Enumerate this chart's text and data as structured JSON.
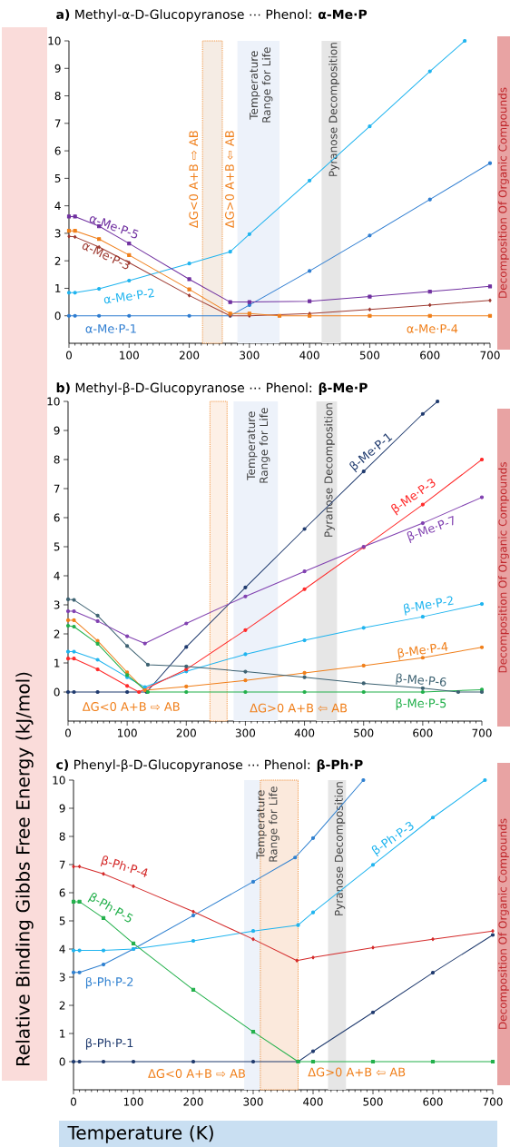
{
  "chart_data": [
    {
      "type": "line",
      "title": "**a)** Methyl-α-D-Glucopyranose ⋯ Phenol: **α-Me·P**",
      "xlim": [
        0,
        700
      ],
      "ylim": [
        -1,
        10
      ],
      "xticks": [
        0,
        100,
        200,
        300,
        400,
        500,
        600,
        700
      ],
      "yticks": [
        0,
        1,
        2,
        3,
        4,
        5,
        6,
        7,
        8,
        9,
        10
      ],
      "series": [
        {
          "name": "α-Me·P-1",
          "color": "#2e7dd1",
          "marker": "circle",
          "x": [
            0,
            10,
            50,
            100,
            200,
            268,
            300,
            400,
            500,
            600,
            700
          ],
          "values": [
            0,
            0,
            0,
            0,
            0,
            0,
            0.39,
            1.63,
            2.92,
            4.23,
            5.55
          ]
        },
        {
          "name": "α-Me·P-2",
          "color": "#1fb4ef",
          "marker": "circle",
          "x": [
            0,
            10,
            50,
            100,
            200,
            268,
            300,
            400,
            500,
            600,
            658
          ],
          "values": [
            0.84,
            0.84,
            0.98,
            1.28,
            1.9,
            2.33,
            2.97,
            4.92,
            6.89,
            8.89,
            10
          ]
        },
        {
          "name": "α-Me·P-3",
          "color": "#9e3b32",
          "marker": "diamond",
          "x": [
            0,
            10,
            50,
            100,
            200,
            268,
            300,
            400,
            500,
            600,
            700
          ],
          "values": [
            2.89,
            2.87,
            2.5,
            1.93,
            0.74,
            0,
            0,
            0.08,
            0.23,
            0.39,
            0.56
          ]
        },
        {
          "name": "α-Me·P-4",
          "color": "#f07f1a",
          "marker": "square",
          "x": [
            0,
            10,
            50,
            100,
            200,
            268,
            300,
            350,
            400,
            500,
            600,
            700
          ],
          "values": [
            3.09,
            3.09,
            2.79,
            2.21,
            0.96,
            0.08,
            0.08,
            0,
            0,
            0,
            0,
            0
          ]
        },
        {
          "name": "α-Me·P-5",
          "color": "#7030a0",
          "marker": "square",
          "x": [
            0,
            10,
            50,
            100,
            200,
            268,
            300,
            400,
            500,
            600,
            700
          ],
          "values": [
            3.61,
            3.61,
            3.26,
            2.63,
            1.33,
            0.5,
            0.5,
            0.53,
            0.7,
            0.88,
            1.07
          ]
        }
      ],
      "bands": [
        {
          "axis": "x",
          "from": 280,
          "to": 350,
          "label": "Temperature Range for Life",
          "color": "#edf2fa"
        },
        {
          "axis": "x",
          "from": 420,
          "to": 452,
          "label": "Pyranose Decomposition",
          "color": "#e6e6e6"
        },
        {
          "axis": "x",
          "from": 222,
          "to": 255,
          "color": "#f5ece4"
        }
      ],
      "annotations": [
        "ΔG<0 A+B ⇨ AB",
        "ΔG>0 A+B ⇦ AB",
        "Decomposition Of Organic Compounds"
      ]
    },
    {
      "type": "line",
      "title": "**b)** Methyl-β-D-Glucopyranose ⋯ Phenol: **β-Me·P**",
      "ylabel": "Relative Binding Gibbs Free Energy (kJ/mol)",
      "xlim": [
        0,
        700
      ],
      "ylim": [
        -1,
        10
      ],
      "xticks": [
        0,
        100,
        200,
        300,
        400,
        500,
        600,
        700
      ],
      "yticks": [
        0,
        1,
        2,
        3,
        4,
        5,
        6,
        7,
        8,
        9,
        10
      ],
      "series": [
        {
          "name": "β-Me·P-1",
          "color": "#1f3a6e",
          "marker": "circle",
          "x": [
            0,
            10,
            50,
            100,
            133,
            200,
            300,
            400,
            500,
            600,
            625
          ],
          "values": [
            0,
            0,
            0,
            0,
            0,
            1.55,
            3.6,
            5.61,
            7.59,
            9.57,
            10
          ]
        },
        {
          "name": "β-Me·P-2",
          "color": "#1fb4ef",
          "marker": "circle",
          "x": [
            0,
            10,
            50,
            100,
            130,
            200,
            300,
            400,
            500,
            600,
            700
          ],
          "values": [
            1.39,
            1.39,
            1.11,
            0.51,
            0.17,
            0.71,
            1.3,
            1.78,
            2.21,
            2.59,
            3.03
          ]
        },
        {
          "name": "β-Me·P-3",
          "color": "#ff2a2a",
          "marker": "circle",
          "x": [
            0,
            10,
            50,
            100,
            120,
            200,
            300,
            400,
            500,
            600,
            700
          ],
          "values": [
            1.15,
            1.15,
            0.78,
            0.21,
            0,
            0.78,
            2.13,
            3.54,
            4.98,
            6.45,
            8.0
          ]
        },
        {
          "name": "β-Me·P-4",
          "color": "#f07f1a",
          "marker": "circle",
          "x": [
            0,
            10,
            50,
            100,
            130,
            200,
            300,
            400,
            500,
            600,
            700
          ],
          "values": [
            2.47,
            2.47,
            1.76,
            0.68,
            0.06,
            0.19,
            0.4,
            0.66,
            0.91,
            1.18,
            1.54
          ]
        },
        {
          "name": "β-Me·P-5",
          "color": "#22b04b",
          "marker": "circle",
          "x": [
            0,
            10,
            50,
            100,
            135,
            200,
            300,
            400,
            500,
            600,
            700
          ],
          "values": [
            2.28,
            2.25,
            1.66,
            0.58,
            0,
            0,
            0,
            0,
            0,
            0,
            0.08
          ]
        },
        {
          "name": "β-Me·P-6",
          "color": "#3d6272",
          "marker": "circle",
          "x": [
            0,
            10,
            50,
            100,
            135,
            200,
            300,
            400,
            500,
            600,
            660,
            700
          ],
          "values": [
            3.19,
            3.17,
            2.63,
            1.58,
            0.94,
            0.88,
            0.7,
            0.51,
            0.3,
            0.13,
            0,
            0
          ]
        },
        {
          "name": "β-Me·P-7",
          "color": "#8040b0",
          "marker": "circle",
          "x": [
            0,
            10,
            50,
            100,
            130,
            200,
            300,
            400,
            500,
            600,
            700
          ],
          "values": [
            2.78,
            2.78,
            2.44,
            1.92,
            1.67,
            2.36,
            3.29,
            4.15,
            5.0,
            5.81,
            6.7
          ]
        }
      ],
      "bands": [
        {
          "axis": "x",
          "from": 280,
          "to": 355,
          "label": "Temperature Range for Life",
          "color": "#edf2fa"
        },
        {
          "axis": "x",
          "from": 420,
          "to": 455,
          "label": "Pyranose Decomposition",
          "color": "#e6e6e6"
        },
        {
          "axis": "x",
          "from": 240,
          "to": 269,
          "color": "#fdf0e6"
        }
      ],
      "annotations": [
        "ΔG<0 A+B ⇨ AB",
        "ΔG>0 A+B ⇦ AB",
        "Decomposition Of Organic Compounds"
      ]
    },
    {
      "type": "line",
      "title": "**c)** Phenyl-β-D-Glucopyranose ⋯ Phenol: **β-Ph·P**",
      "xlabel": "Temperature (K)",
      "xlim": [
        0,
        700
      ],
      "ylim": [
        -1,
        10
      ],
      "xticks": [
        0,
        100,
        200,
        300,
        400,
        500,
        600,
        700
      ],
      "yticks": [
        0,
        1,
        2,
        3,
        4,
        5,
        6,
        7,
        8,
        9,
        10
      ],
      "series": [
        {
          "name": "β-Ph·P-1",
          "color": "#1f3a6e",
          "marker": "circle",
          "x": [
            0,
            10,
            50,
            100,
            200,
            300,
            375,
            400,
            500,
            600,
            700
          ],
          "values": [
            0,
            0,
            0,
            0,
            0,
            0,
            0,
            0.37,
            1.75,
            3.16,
            4.5
          ]
        },
        {
          "name": "β-Ph·P-2",
          "color": "#2f80d0",
          "marker": "circle",
          "x": [
            0,
            10,
            50,
            100,
            200,
            300,
            370,
            400,
            484
          ],
          "values": [
            3.17,
            3.17,
            3.45,
            4.0,
            5.19,
            6.39,
            7.25,
            7.94,
            10
          ]
        },
        {
          "name": "β-Ph·P-3",
          "color": "#1fb4ef",
          "marker": "circle",
          "x": [
            0,
            10,
            50,
            100,
            200,
            300,
            375,
            400,
            500,
            600,
            687
          ],
          "values": [
            3.95,
            3.95,
            3.95,
            4.0,
            4.29,
            4.64,
            4.85,
            5.3,
            6.99,
            8.67,
            10
          ]
        },
        {
          "name": "β-Ph·P-4",
          "color": "#d42a2a",
          "marker": "diamond",
          "x": [
            0,
            10,
            50,
            100,
            200,
            300,
            373,
            400,
            500,
            600,
            700
          ],
          "values": [
            6.93,
            6.93,
            6.67,
            6.23,
            5.33,
            4.35,
            3.59,
            3.7,
            4.05,
            4.35,
            4.64
          ]
        },
        {
          "name": "β-Ph·P-5",
          "color": "#22b04b",
          "marker": "square",
          "x": [
            0,
            10,
            50,
            100,
            200,
            300,
            375,
            400,
            500,
            600,
            700
          ],
          "values": [
            5.68,
            5.68,
            5.1,
            4.2,
            2.55,
            1.06,
            0,
            0,
            0,
            0,
            0
          ]
        }
      ],
      "bands": [
        {
          "axis": "x",
          "from": 285,
          "to": 355,
          "label": "Temperature Range for Life",
          "color": "#edf2fa"
        },
        {
          "axis": "x",
          "from": 425,
          "to": 455,
          "label": "Pyranose Decomposition",
          "color": "#e6e6e6"
        },
        {
          "axis": "x",
          "from": 312,
          "to": 375,
          "color": "#fbe9dc"
        }
      ],
      "annotations": [
        "ΔG<0 A+B ⇨ AB",
        "ΔG>0 A+B ⇦ AB",
        "Decomposition Of Organic Compounds"
      ]
    }
  ]
}
